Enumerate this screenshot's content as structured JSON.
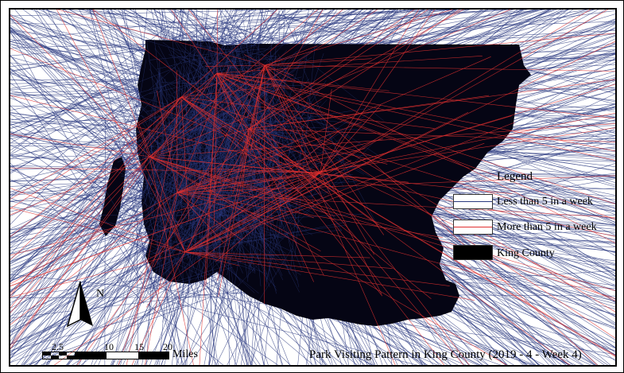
{
  "title": "Park Visiting Pattern in King County (2019 - 4 - Week 4)",
  "legend": {
    "title": "Legend",
    "items": [
      {
        "label": "Less than 5 in a week",
        "color": "#2b3a80"
      },
      {
        "label": "More than 5 in a week",
        "color": "#e0302f"
      },
      {
        "label": "King County",
        "color": "#000000"
      }
    ]
  },
  "scale_bar": {
    "ticks": [
      "2.5",
      "10",
      "15",
      "20"
    ],
    "unit": "Miles"
  },
  "north_arrow": {
    "label": "N",
    "icon": "north-arrow-icon"
  },
  "colors": {
    "county_fill": "#050514",
    "flow_blue": "#2b3a80",
    "flow_red": "#e0302f"
  }
}
